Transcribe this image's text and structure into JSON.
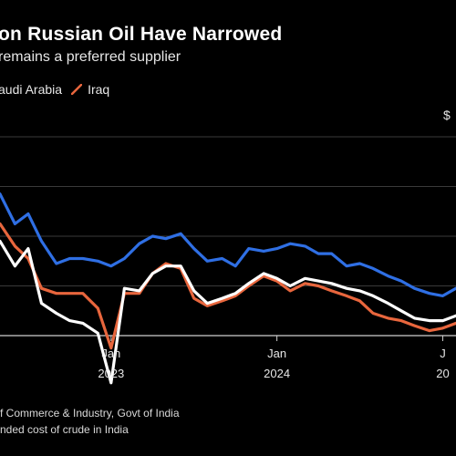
{
  "header": {
    "title": "on Russian Oil Have Narrowed",
    "subtitle": "remains a preferred supplier"
  },
  "top_right_label": "$",
  "footnotes": [
    "f Commerce & Industry, Govt of India",
    "nded cost of crude in India"
  ],
  "colors": {
    "russia": "#2f6fe4",
    "saudi_arabia": "#ffffff",
    "iraq": "#e8663d",
    "grid": "#3a3a3a",
    "axis_text": "#e6e6e6"
  },
  "chart_data": {
    "type": "line",
    "title": "on Russian Oil Have Narrowed",
    "subtitle": "remains a preferred supplier",
    "legend": [
      "audi Arabia",
      "Iraq"
    ],
    "legend_position": "top-left",
    "grid": true,
    "x_tick_labels": [
      {
        "line1": "Jan",
        "line2": "2023"
      },
      {
        "line1": "Jan",
        "line2": "2024"
      },
      {
        "line1": "J",
        "line2": "20"
      }
    ],
    "x_tick_positions": [
      2023.0,
      2024.0,
      2025.0
    ],
    "xlim": [
      2022.33,
      2025.08
    ],
    "ylim": [
      70,
      110
    ],
    "series": [
      {
        "name": "",
        "key": "russia",
        "x": [
          2022.33,
          2022.42,
          2022.5,
          2022.58,
          2022.67,
          2022.75,
          2022.83,
          2022.92,
          2023.0,
          2023.08,
          2023.17,
          2023.25,
          2023.33,
          2023.42,
          2023.5,
          2023.58,
          2023.67,
          2023.75,
          2023.83,
          2023.92,
          2024.0,
          2024.08,
          2024.17,
          2024.25,
          2024.33,
          2024.42,
          2024.5,
          2024.58,
          2024.67,
          2024.75,
          2024.83,
          2024.92,
          2025.0,
          2025.08
        ],
        "values": [
          98.5,
          92.5,
          94.5,
          89.0,
          84.5,
          85.5,
          85.5,
          85.0,
          84.0,
          85.5,
          88.5,
          90.0,
          89.5,
          90.5,
          87.5,
          85.0,
          85.5,
          84.0,
          87.5,
          87.0,
          87.5,
          88.5,
          88.0,
          86.5,
          86.5,
          84.0,
          84.5,
          83.5,
          82.0,
          81.0,
          79.5,
          78.5,
          78.0,
          79.5
        ]
      },
      {
        "name": "audi Arabia",
        "key": "saudi_arabia",
        "x": [
          2022.33,
          2022.42,
          2022.5,
          2022.58,
          2022.67,
          2022.75,
          2022.83,
          2022.92,
          2023.0,
          2023.08,
          2023.17,
          2023.25,
          2023.33,
          2023.42,
          2023.5,
          2023.58,
          2023.67,
          2023.75,
          2023.83,
          2023.92,
          2024.0,
          2024.08,
          2024.17,
          2024.25,
          2024.33,
          2024.42,
          2024.5,
          2024.58,
          2024.67,
          2024.75,
          2024.83,
          2024.92,
          2025.0,
          2025.08
        ],
        "values": [
          89.0,
          84.0,
          87.5,
          76.5,
          74.5,
          73.0,
          72.5,
          70.5,
          60.5,
          79.5,
          79.0,
          82.5,
          84.0,
          84.0,
          79.0,
          76.5,
          77.5,
          78.5,
          80.5,
          82.5,
          81.5,
          80.0,
          81.5,
          81.0,
          80.5,
          79.5,
          79.0,
          78.0,
          76.5,
          75.0,
          73.5,
          73.0,
          73.0,
          74.0
        ]
      },
      {
        "name": "Iraq",
        "key": "iraq",
        "x": [
          2022.33,
          2022.42,
          2022.5,
          2022.58,
          2022.67,
          2022.75,
          2022.83,
          2022.92,
          2023.0,
          2023.08,
          2023.17,
          2023.25,
          2023.33,
          2023.42,
          2023.5,
          2023.58,
          2023.67,
          2023.75,
          2023.83,
          2023.92,
          2024.0,
          2024.08,
          2024.17,
          2024.25,
          2024.33,
          2024.42,
          2024.5,
          2024.58,
          2024.67,
          2024.75,
          2024.83,
          2024.92,
          2025.0,
          2025.08
        ],
        "values": [
          92.5,
          88.0,
          85.5,
          79.5,
          78.5,
          78.5,
          78.5,
          75.5,
          67.5,
          78.5,
          78.5,
          82.5,
          84.5,
          83.5,
          77.5,
          76.0,
          77.0,
          78.0,
          80.0,
          82.0,
          81.0,
          79.0,
          80.5,
          80.0,
          79.0,
          78.0,
          77.0,
          74.5,
          73.5,
          73.0,
          72.0,
          71.0,
          71.5,
          72.5
        ]
      }
    ]
  }
}
